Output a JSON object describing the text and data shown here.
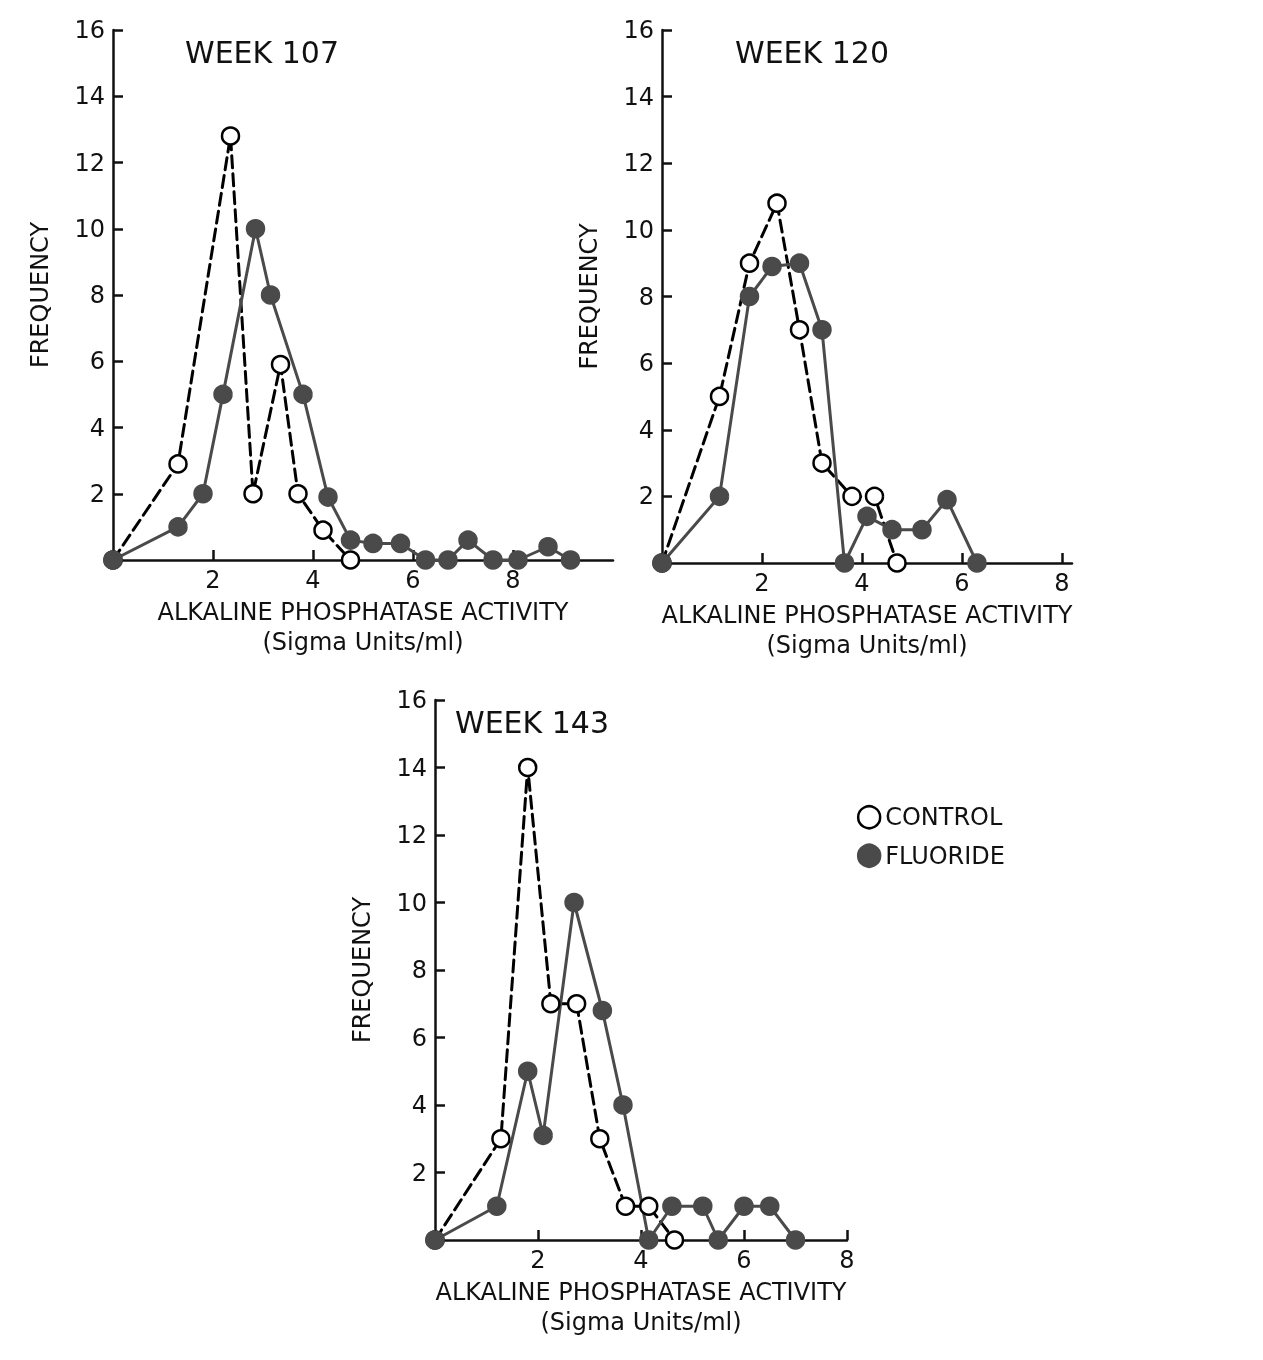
{
  "chart_data": [
    {
      "type": "line",
      "title": "WEEK 107",
      "xlabel": "ALKALINE PHOSPHATASE ACTIVITY\n(Sigma Units/ml)",
      "ylabel": "FREQUENCY",
      "xlim": [
        0,
        10
      ],
      "xticks": [
        2,
        4,
        6,
        8
      ],
      "ylim": [
        0,
        16
      ],
      "yticks": [
        2,
        4,
        6,
        8,
        10,
        12,
        14,
        16
      ],
      "grid": false,
      "legend": false,
      "marker": "circle",
      "series": [
        {
          "color": "#000000",
          "line_style": "dashed",
          "x": [
            0,
            1.3,
            2.35,
            2.8,
            3.35,
            3.7,
            4.2,
            4.75
          ],
          "values": [
            0,
            2.9,
            12.8,
            2,
            5.9,
            2,
            0.9,
            0
          ]
        },
        {
          "color": "#4a4a4a",
          "line_style": "solid",
          "x": [
            0,
            1.3,
            1.8,
            2.2,
            2.85,
            3.15,
            3.8,
            4.3,
            4.75,
            5.2,
            5.75,
            6.25,
            6.7,
            7.1,
            7.6,
            8.1,
            8.7,
            9.15
          ],
          "values": [
            0,
            1,
            2,
            5,
            10,
            8,
            5,
            1.9,
            0.6,
            0.5,
            0.5,
            0,
            0,
            0.6,
            0,
            0,
            0.4,
            0
          ]
        }
      ]
    },
    {
      "type": "line",
      "title": "WEEK 120",
      "xlabel": "ALKALINE PHOSPHATASE ACTIVITY\n(Sigma Units/ml)",
      "ylabel": "FREQUENCY",
      "xlim": [
        0,
        8.2
      ],
      "xticks": [
        2,
        4,
        6,
        8
      ],
      "ylim": [
        0,
        16
      ],
      "yticks": [
        2,
        4,
        6,
        8,
        10,
        12,
        14,
        16
      ],
      "grid": false,
      "legend": false,
      "marker": "circle",
      "series": [
        {
          "color": "#000000",
          "line_style": "dashed",
          "x": [
            0,
            1.15,
            1.75,
            2.3,
            2.75,
            3.2,
            3.8,
            4.25,
            4.7
          ],
          "values": [
            0,
            5,
            9,
            10.8,
            7,
            3,
            2,
            2,
            0
          ]
        },
        {
          "color": "#4a4a4a",
          "line_style": "solid",
          "x": [
            0,
            1.15,
            1.75,
            2.2,
            2.75,
            3.2,
            3.65,
            4.1,
            4.6,
            5.2,
            5.7,
            6.3
          ],
          "values": [
            0,
            2,
            8,
            8.9,
            9,
            7,
            0,
            1.4,
            1,
            1,
            1.9,
            0
          ]
        }
      ]
    },
    {
      "type": "line",
      "title": "WEEK 143",
      "xlabel": "ALKALINE PHOSPHATASE ACTIVITY\n(Sigma Units/ml)",
      "ylabel": "FREQUENCY",
      "xlim": [
        0,
        8
      ],
      "xticks": [
        2,
        4,
        6,
        8
      ],
      "ylim": [
        0,
        16
      ],
      "yticks": [
        2,
        4,
        6,
        8,
        10,
        12,
        14,
        16
      ],
      "grid": false,
      "legend": "top right",
      "marker": "circle",
      "series": [
        {
          "name": "CONTROL",
          "color": "#000000",
          "line_style": "dashed",
          "x": [
            0,
            1.28,
            1.8,
            2.25,
            2.75,
            3.2,
            3.7,
            4.15,
            4.65
          ],
          "values": [
            0,
            3,
            14,
            7,
            7,
            3,
            1,
            1,
            0
          ]
        },
        {
          "name": "FLUORIDE",
          "color": "#4a4a4a",
          "line_style": "solid",
          "x": [
            0,
            1.2,
            1.8,
            2.1,
            2.7,
            3.25,
            3.65,
            4.15,
            4.6,
            5.2,
            5.5,
            6,
            6.5,
            7
          ],
          "values": [
            0,
            1,
            5,
            3.1,
            10,
            6.8,
            4,
            0,
            1,
            1,
            0,
            1,
            1,
            0
          ]
        }
      ]
    }
  ]
}
